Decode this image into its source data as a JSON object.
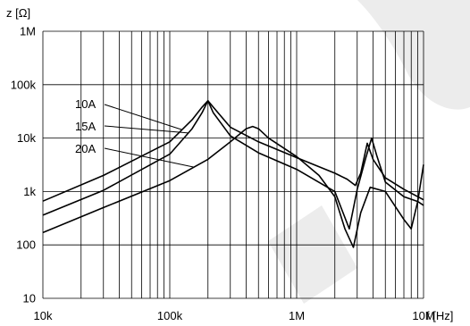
{
  "chart_data": {
    "type": "line",
    "title": "",
    "xlabel": "f [Hz]",
    "ylabel": "z [Ω]",
    "xscale": "log",
    "yscale": "log",
    "xlim": [
      10000,
      10000000
    ],
    "ylim": [
      10,
      1000000
    ],
    "grid": true,
    "x_ticks": [
      {
        "value": 10000,
        "label": "10k"
      },
      {
        "value": 100000,
        "label": "100k"
      },
      {
        "value": 1000000,
        "label": "1M"
      },
      {
        "value": 10000000,
        "label": "10M"
      }
    ],
    "y_ticks": [
      {
        "value": 10,
        "label": "10"
      },
      {
        "value": 100,
        "label": "100"
      },
      {
        "value": 1000,
        "label": "1k"
      },
      {
        "value": 10000,
        "label": "10k"
      },
      {
        "value": 100000,
        "label": "100k"
      },
      {
        "value": 1000000,
        "label": "1M"
      }
    ],
    "series": [
      {
        "name": "10A",
        "x": [
          10000,
          30000,
          100000,
          150000,
          180000,
          200000,
          220000,
          300000,
          500000,
          1000000,
          2000000,
          2500000,
          2900000,
          3200000,
          3600000,
          4000000,
          5000000,
          7000000,
          9000000,
          10000000
        ],
        "y": [
          660,
          2000,
          8500,
          22000,
          38000,
          50000,
          38000,
          16000,
          8500,
          4300,
          2200,
          1700,
          1300,
          2200,
          8000,
          4000,
          1800,
          1100,
          800,
          700
        ]
      },
      {
        "name": "15A",
        "x": [
          10000,
          30000,
          100000,
          150000,
          180000,
          200000,
          220000,
          300000,
          500000,
          1000000,
          2000000,
          2600000,
          3000000,
          3500000,
          3900000,
          4300000,
          5000000,
          7000000,
          9000000,
          10000000
        ],
        "y": [
          360,
          1050,
          5000,
          15000,
          30000,
          50000,
          30000,
          11000,
          5300,
          2600,
          1000,
          200,
          1100,
          4200,
          10000,
          4500,
          1500,
          800,
          650,
          550
        ]
      },
      {
        "name": "20A",
        "x": [
          10000,
          30000,
          100000,
          200000,
          300000,
          400000,
          450000,
          500000,
          600000,
          1000000,
          1500000,
          2000000,
          2400000,
          2800000,
          3200000,
          3800000,
          5000000,
          7000000,
          8000000,
          9000000,
          10000000
        ],
        "y": [
          170,
          500,
          1600,
          4000,
          8500,
          15000,
          16500,
          15000,
          10000,
          4500,
          2000,
          800,
          200,
          90,
          400,
          1200,
          1000,
          300,
          200,
          650,
          3200
        ]
      }
    ]
  }
}
